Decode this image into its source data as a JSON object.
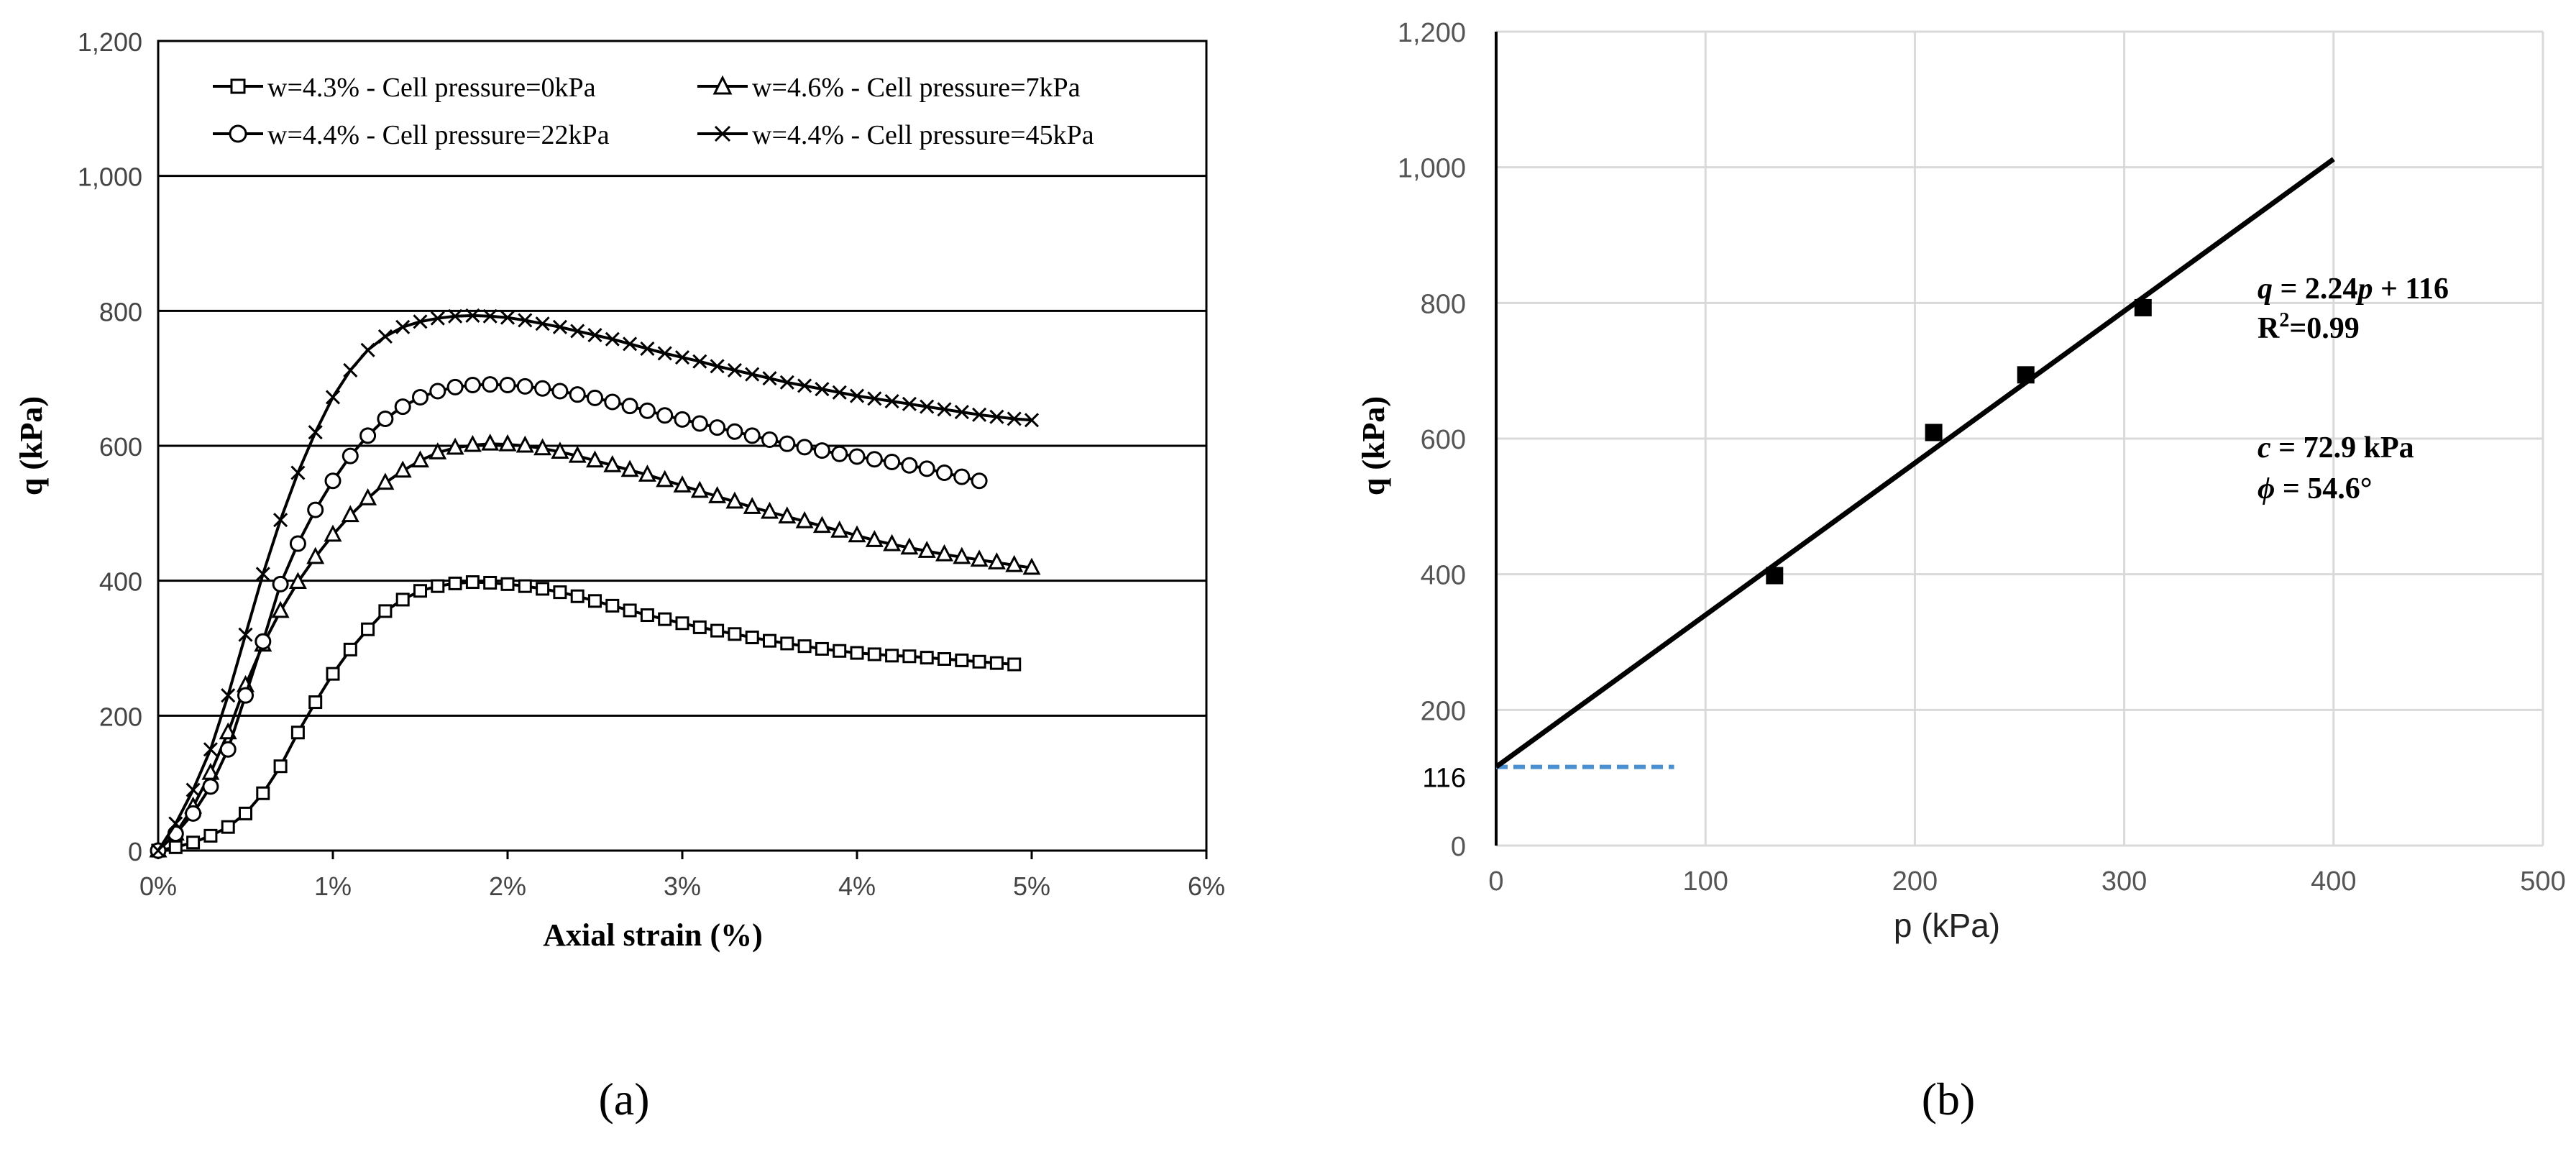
{
  "figure": {
    "panel_a_label": "(a)",
    "panel_b_label": "(b)"
  },
  "chart_data": [
    {
      "panel": "(a)",
      "type": "line",
      "xlabel": "Axial strain (%)",
      "ylabel": "q (kPa)",
      "xlim": [
        0,
        6
      ],
      "ylim": [
        0,
        1200
      ],
      "x_ticks": [
        "0%",
        "1%",
        "2%",
        "3%",
        "4%",
        "5%",
        "6%"
      ],
      "y_ticks": [
        "0",
        "200",
        "400",
        "600",
        "800",
        "1,000",
        "1,200"
      ],
      "grid": "horizontal",
      "legend_position": "top",
      "series": [
        {
          "name": "w=4.3% - Cell pressure=0kPa",
          "marker": "square",
          "points": [
            [
              0,
              0
            ],
            [
              0.1,
              5
            ],
            [
              0.2,
              12
            ],
            [
              0.3,
              22
            ],
            [
              0.4,
              35
            ],
            [
              0.5,
              55
            ],
            [
              0.6,
              85
            ],
            [
              0.7,
              125
            ],
            [
              0.8,
              175
            ],
            [
              0.9,
              220
            ],
            [
              1.0,
              262
            ],
            [
              1.1,
              298
            ],
            [
              1.2,
              328
            ],
            [
              1.3,
              355
            ],
            [
              1.4,
              372
            ],
            [
              1.5,
              385
            ],
            [
              1.6,
              392
            ],
            [
              1.7,
              396
            ],
            [
              1.8,
              398
            ],
            [
              1.9,
              397
            ],
            [
              2.0,
              395
            ],
            [
              2.1,
              392
            ],
            [
              2.2,
              388
            ],
            [
              2.3,
              383
            ],
            [
              2.4,
              377
            ],
            [
              2.5,
              370
            ],
            [
              2.6,
              363
            ],
            [
              2.7,
              356
            ],
            [
              2.8,
              349
            ],
            [
              2.9,
              343
            ],
            [
              3.0,
              337
            ],
            [
              3.1,
              331
            ],
            [
              3.2,
              326
            ],
            [
              3.3,
              321
            ],
            [
              3.4,
              316
            ],
            [
              3.5,
              311
            ],
            [
              3.6,
              307
            ],
            [
              3.7,
              303
            ],
            [
              3.8,
              299
            ],
            [
              3.9,
              296
            ],
            [
              4.0,
              293
            ],
            [
              4.1,
              291
            ],
            [
              4.2,
              289
            ],
            [
              4.3,
              288
            ],
            [
              4.4,
              286
            ],
            [
              4.5,
              284
            ],
            [
              4.6,
              282
            ],
            [
              4.7,
              280
            ],
            [
              4.8,
              278
            ],
            [
              4.9,
              276
            ]
          ]
        },
        {
          "name": "w=4.6% - Cell pressure=7kPa",
          "marker": "triangle",
          "points": [
            [
              0,
              0
            ],
            [
              0.1,
              25
            ],
            [
              0.2,
              65
            ],
            [
              0.3,
              115
            ],
            [
              0.4,
              175
            ],
            [
              0.5,
              245
            ],
            [
              0.6,
              305
            ],
            [
              0.7,
              355
            ],
            [
              0.8,
              398
            ],
            [
              0.9,
              435
            ],
            [
              1.0,
              468
            ],
            [
              1.1,
              497
            ],
            [
              1.2,
              522
            ],
            [
              1.3,
              545
            ],
            [
              1.4,
              563
            ],
            [
              1.5,
              578
            ],
            [
              1.6,
              590
            ],
            [
              1.7,
              597
            ],
            [
              1.8,
              601
            ],
            [
              1.9,
              603
            ],
            [
              2.0,
              602
            ],
            [
              2.1,
              600
            ],
            [
              2.2,
              596
            ],
            [
              2.3,
              591
            ],
            [
              2.4,
              585
            ],
            [
              2.5,
              578
            ],
            [
              2.6,
              571
            ],
            [
              2.7,
              564
            ],
            [
              2.8,
              557
            ],
            [
              2.9,
              549
            ],
            [
              3.0,
              541
            ],
            [
              3.1,
              533
            ],
            [
              3.2,
              525
            ],
            [
              3.3,
              517
            ],
            [
              3.4,
              509
            ],
            [
              3.5,
              502
            ],
            [
              3.6,
              495
            ],
            [
              3.7,
              488
            ],
            [
              3.8,
              481
            ],
            [
              3.9,
              474
            ],
            [
              4.0,
              467
            ],
            [
              4.1,
              460
            ],
            [
              4.2,
              454
            ],
            [
              4.3,
              449
            ],
            [
              4.4,
              444
            ],
            [
              4.5,
              439
            ],
            [
              4.6,
              435
            ],
            [
              4.7,
              431
            ],
            [
              4.8,
              427
            ],
            [
              4.9,
              423
            ],
            [
              5.0,
              419
            ]
          ]
        },
        {
          "name": "w=4.4% - Cell pressure=22kPa",
          "marker": "circle",
          "points": [
            [
              0,
              0
            ],
            [
              0.1,
              25
            ],
            [
              0.2,
              55
            ],
            [
              0.3,
              95
            ],
            [
              0.4,
              150
            ],
            [
              0.5,
              230
            ],
            [
              0.6,
              310
            ],
            [
              0.7,
              395
            ],
            [
              0.8,
              455
            ],
            [
              0.9,
              505
            ],
            [
              1.0,
              548
            ],
            [
              1.1,
              585
            ],
            [
              1.2,
              615
            ],
            [
              1.3,
              640
            ],
            [
              1.4,
              658
            ],
            [
              1.5,
              672
            ],
            [
              1.6,
              681
            ],
            [
              1.7,
              687
            ],
            [
              1.8,
              690
            ],
            [
              1.9,
              691
            ],
            [
              2.0,
              690
            ],
            [
              2.1,
              688
            ],
            [
              2.2,
              685
            ],
            [
              2.3,
              681
            ],
            [
              2.4,
              676
            ],
            [
              2.5,
              671
            ],
            [
              2.6,
              665
            ],
            [
              2.7,
              659
            ],
            [
              2.8,
              652
            ],
            [
              2.9,
              645
            ],
            [
              3.0,
              639
            ],
            [
              3.1,
              633
            ],
            [
              3.2,
              627
            ],
            [
              3.3,
              621
            ],
            [
              3.4,
              615
            ],
            [
              3.5,
              609
            ],
            [
              3.6,
              603
            ],
            [
              3.7,
              598
            ],
            [
              3.8,
              593
            ],
            [
              3.9,
              588
            ],
            [
              4.0,
              584
            ],
            [
              4.1,
              580
            ],
            [
              4.2,
              576
            ],
            [
              4.3,
              571
            ],
            [
              4.4,
              566
            ],
            [
              4.5,
              560
            ],
            [
              4.6,
              554
            ],
            [
              4.7,
              548
            ]
          ]
        },
        {
          "name": "w=4.4% - Cell pressure=45kPa",
          "marker": "x",
          "points": [
            [
              0,
              0
            ],
            [
              0.1,
              40
            ],
            [
              0.2,
              90
            ],
            [
              0.3,
              150
            ],
            [
              0.4,
              230
            ],
            [
              0.5,
              320
            ],
            [
              0.6,
              410
            ],
            [
              0.7,
              490
            ],
            [
              0.8,
              560
            ],
            [
              0.9,
              620
            ],
            [
              1.0,
              672
            ],
            [
              1.1,
              712
            ],
            [
              1.2,
              742
            ],
            [
              1.3,
              762
            ],
            [
              1.4,
              776
            ],
            [
              1.5,
              784
            ],
            [
              1.6,
              789
            ],
            [
              1.7,
              792
            ],
            [
              1.8,
              793
            ],
            [
              1.9,
              792
            ],
            [
              2.0,
              790
            ],
            [
              2.1,
              786
            ],
            [
              2.2,
              781
            ],
            [
              2.3,
              776
            ],
            [
              2.4,
              770
            ],
            [
              2.5,
              764
            ],
            [
              2.6,
              758
            ],
            [
              2.7,
              751
            ],
            [
              2.8,
              744
            ],
            [
              2.9,
              737
            ],
            [
              3.0,
              731
            ],
            [
              3.1,
              725
            ],
            [
              3.2,
              718
            ],
            [
              3.3,
              712
            ],
            [
              3.4,
              706
            ],
            [
              3.5,
              700
            ],
            [
              3.6,
              694
            ],
            [
              3.7,
              689
            ],
            [
              3.8,
              684
            ],
            [
              3.9,
              679
            ],
            [
              4.0,
              674
            ],
            [
              4.1,
              670
            ],
            [
              4.2,
              666
            ],
            [
              4.3,
              662
            ],
            [
              4.4,
              658
            ],
            [
              4.5,
              654
            ],
            [
              4.6,
              650
            ],
            [
              4.7,
              646
            ],
            [
              4.8,
              643
            ],
            [
              4.9,
              640
            ],
            [
              5.0,
              638
            ]
          ]
        }
      ]
    },
    {
      "panel": "(b)",
      "type": "scatter",
      "xlabel": "p (kPa)",
      "ylabel": "q (kPa)",
      "xlim": [
        0,
        500
      ],
      "ylim": [
        0,
        1200
      ],
      "x_ticks": [
        "0",
        "100",
        "200",
        "300",
        "400",
        "500"
      ],
      "y_ticks": [
        "0",
        "200",
        "400",
        "600",
        "800",
        "1,000",
        "1,200"
      ],
      "y_extra_tick": "116",
      "grid": "both",
      "points": [
        [
          133,
          398
        ],
        [
          209,
          609
        ],
        [
          253,
          694
        ],
        [
          309,
          793
        ]
      ],
      "fit_line": {
        "slope": 2.24,
        "intercept": 116,
        "x_range": [
          0,
          400
        ]
      },
      "intercept_marker": {
        "value": 116,
        "x_range": [
          0,
          85
        ],
        "color": "#4a8fd0",
        "style": "dashed"
      },
      "annotations": {
        "equation_prefix": "q",
        "equation_middle": " = 2.24",
        "equation_var": "p",
        "equation_suffix": " + 116",
        "r2_prefix": "R",
        "r2_sup": "2",
        "r2_suffix": "=0.99",
        "c_var": "c",
        "c_text": " = 72.9 kPa",
        "phi_var": "ϕ",
        "phi_text": " = 54.6°"
      }
    }
  ]
}
